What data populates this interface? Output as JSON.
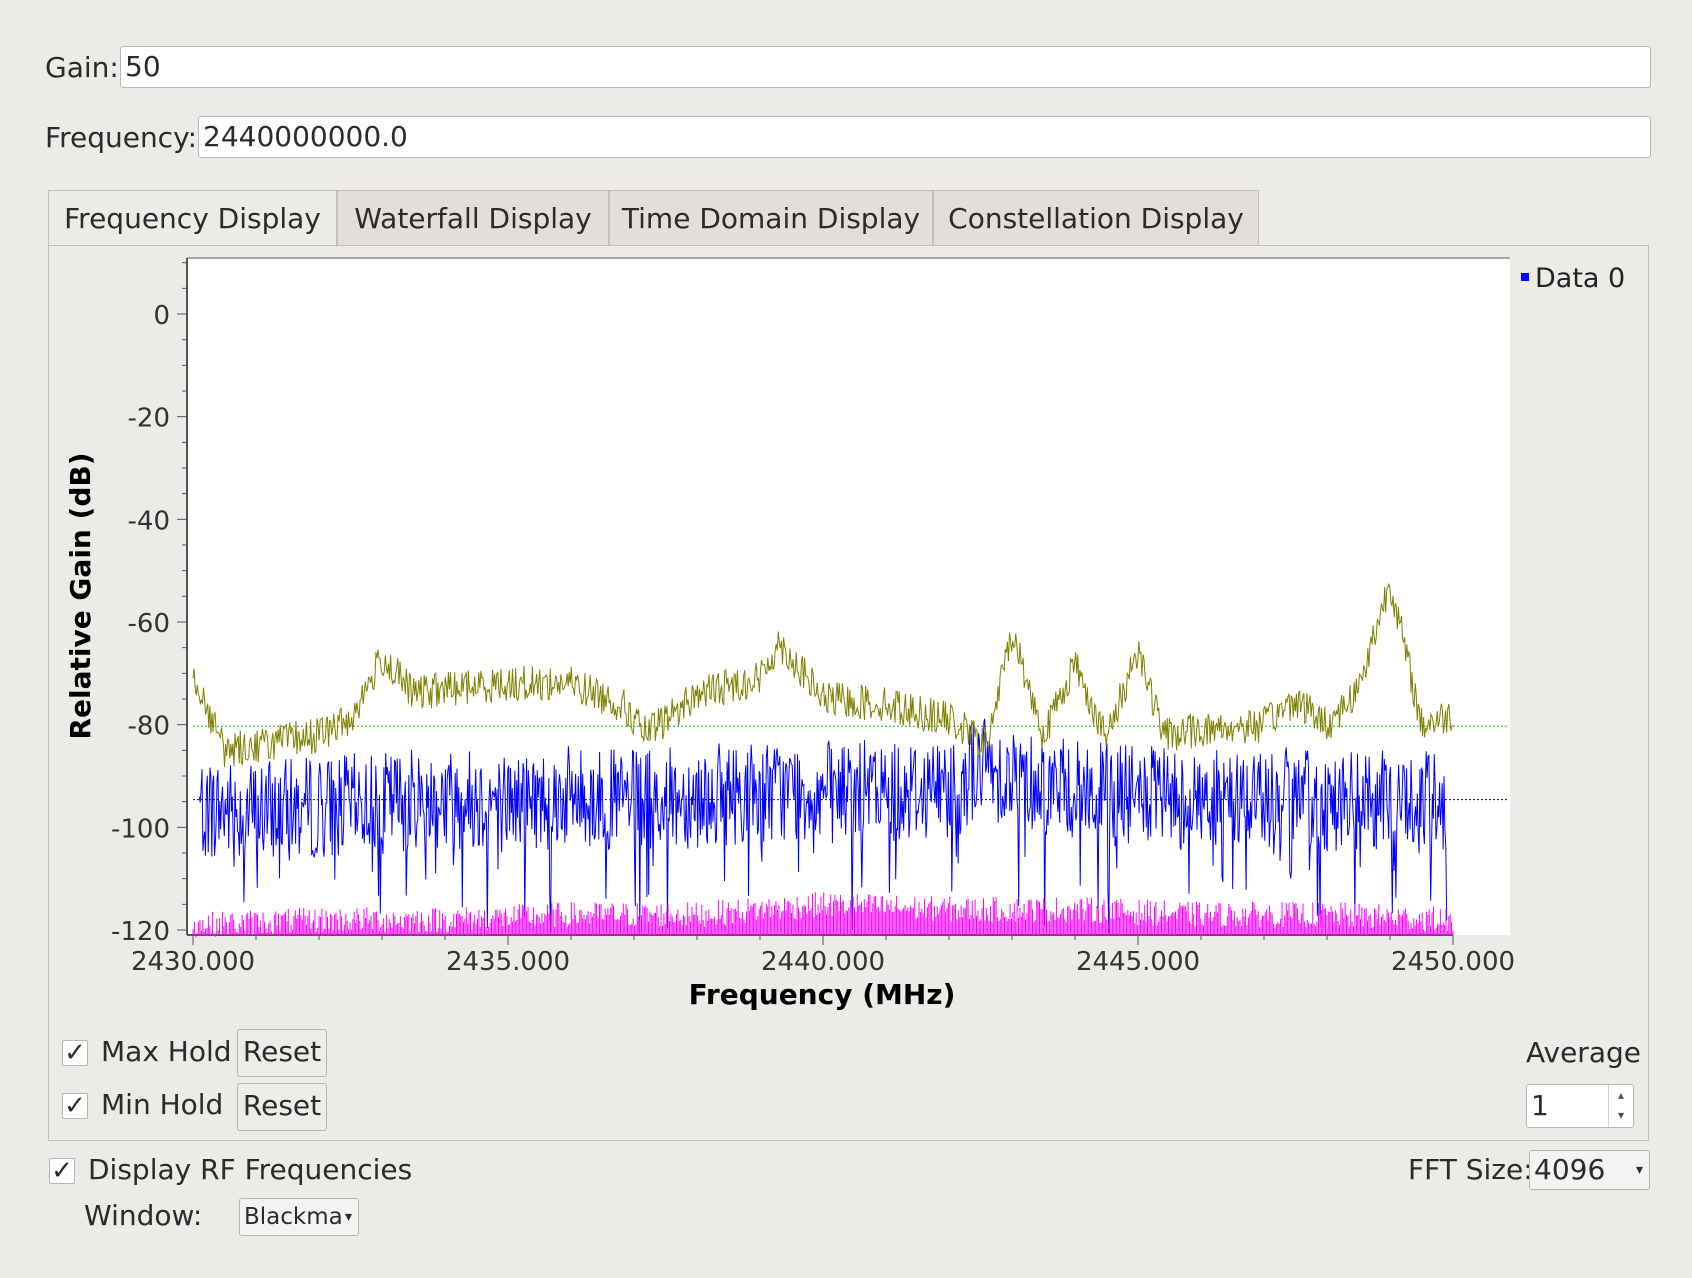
{
  "gain": {
    "label": "Gain:",
    "value": "50"
  },
  "frequency": {
    "label": "Frequency:",
    "value": "2440000000.0"
  },
  "tabs": [
    {
      "label": "Frequency Display",
      "active": true
    },
    {
      "label": "Waterfall Display"
    },
    {
      "label": "Time Domain Display"
    },
    {
      "label": "Constellation Display"
    }
  ],
  "chart_data": {
    "type": "line",
    "xlabel": "Frequency (MHz)",
    "ylabel": "Relative Gain (dB)",
    "xlim": [
      2430,
      2450
    ],
    "ylim": [
      -120,
      10
    ],
    "x_ticks": [
      "2430.000",
      "2435.000",
      "2440.000",
      "2445.000",
      "2450.000"
    ],
    "y_ticks": [
      "0",
      "-20",
      "-40",
      "-60",
      "-80",
      "-100",
      "-120"
    ],
    "legend": [
      "Data 0"
    ],
    "legend_position": "top-right",
    "series": [
      {
        "name": "Data 0",
        "color": "#0000ff",
        "x": [
          2430.1,
          2431.0,
          2432.0,
          2433.0,
          2434.0,
          2435.0,
          2436.0,
          2437.0,
          2438.0,
          2439.0,
          2440.0,
          2441.0,
          2442.0,
          2442.5,
          2443.0,
          2444.0,
          2445.0,
          2446.0,
          2447.0,
          2448.0,
          2449.0,
          2449.9
        ],
        "y": [
          -96,
          -97,
          -96,
          -95,
          -94,
          -95,
          -94,
          -95,
          -94,
          -93,
          -93,
          -93,
          -92,
          -88,
          -90,
          -93,
          -94,
          -95,
          -94,
          -95,
          -95,
          -95
        ]
      },
      {
        "name": "Max Hold",
        "color": "#808000",
        "x": [
          2430.0,
          2430.5,
          2431.0,
          2431.5,
          2432.0,
          2432.5,
          2433.0,
          2433.5,
          2434.0,
          2435.0,
          2436.0,
          2436.8,
          2437.2,
          2438.0,
          2439.0,
          2439.3,
          2440.0,
          2441.0,
          2442.0,
          2442.6,
          2443.0,
          2443.5,
          2444.0,
          2444.5,
          2445.0,
          2445.4,
          2446.0,
          2447.0,
          2447.5,
          2448.0,
          2448.5,
          2449.0,
          2449.5,
          2450.0
        ],
        "y": [
          -70,
          -85,
          -84,
          -83,
          -82,
          -79,
          -67,
          -74,
          -73,
          -72,
          -72,
          -76,
          -82,
          -74,
          -71,
          -64,
          -75,
          -76,
          -79,
          -84,
          -62,
          -82,
          -68,
          -83,
          -65,
          -82,
          -81,
          -80,
          -75,
          -80,
          -73,
          -52,
          -80,
          -78
        ]
      },
      {
        "name": "Min Hold",
        "color": "#ff00ff",
        "x": [
          2430.0,
          2432.0,
          2434.0,
          2436.0,
          2438.0,
          2440.0,
          2442.0,
          2444.0,
          2446.0,
          2448.0,
          2450.0
        ],
        "y": [
          -119,
          -118,
          -118,
          -117,
          -117,
          -115,
          -116,
          -116,
          -117,
          -117,
          -118
        ]
      }
    ],
    "reference_lines": [
      {
        "y": -80.3,
        "color": "#00cc00"
      },
      {
        "y": -94.6,
        "color": "#0000aa"
      }
    ]
  },
  "controls": {
    "max_hold": {
      "label": "Max Hold",
      "checked": true,
      "reset": "Reset"
    },
    "min_hold": {
      "label": "Min Hold",
      "checked": true,
      "reset": "Reset"
    },
    "average": {
      "label": "Average",
      "value": "1"
    }
  },
  "display_rf": {
    "label": "Display RF Frequencies",
    "checked": true
  },
  "fft_size": {
    "label": "FFT Size:",
    "value": "4096"
  },
  "window": {
    "label": "Window:",
    "value": "Blackma"
  },
  "check_mark": "✓"
}
